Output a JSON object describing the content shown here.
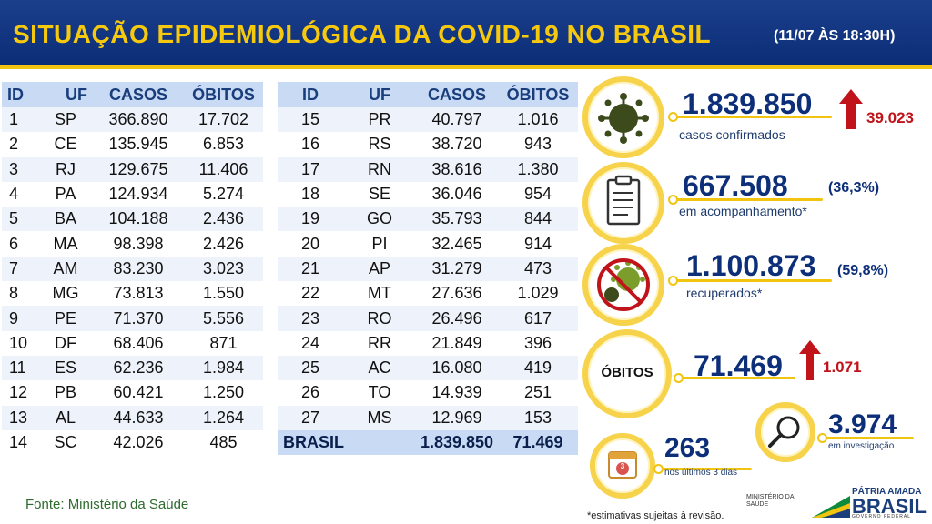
{
  "header": {
    "title": "SITUAÇÃO EPIDEMIOLÓGICA DA COVID-19 NO BRASIL",
    "timestamp": "(11/07 ÀS 18:30H)"
  },
  "table_headers": {
    "id": "ID",
    "uf": "UF",
    "cases": "CASOS",
    "deaths": "ÓBITOS"
  },
  "left_rows": [
    [
      "1",
      "SP",
      "366.890",
      "17.702"
    ],
    [
      "2",
      "CE",
      "135.945",
      "6.853"
    ],
    [
      "3",
      "RJ",
      "129.675",
      "11.406"
    ],
    [
      "4",
      "PA",
      "124.934",
      "5.274"
    ],
    [
      "5",
      "BA",
      "104.188",
      "2.436"
    ],
    [
      "6",
      "MA",
      "98.398",
      "2.426"
    ],
    [
      "7",
      "AM",
      "83.230",
      "3.023"
    ],
    [
      "8",
      "MG",
      "73.813",
      "1.550"
    ],
    [
      "9",
      "PE",
      "71.370",
      "5.556"
    ],
    [
      "10",
      "DF",
      "68.406",
      "871"
    ],
    [
      "11",
      "ES",
      "62.236",
      "1.984"
    ],
    [
      "12",
      "PB",
      "60.421",
      "1.250"
    ],
    [
      "13",
      "AL",
      "44.633",
      "1.264"
    ],
    [
      "14",
      "SC",
      "42.026",
      "485"
    ]
  ],
  "right_rows": [
    [
      "15",
      "PR",
      "40.797",
      "1.016"
    ],
    [
      "16",
      "RS",
      "38.720",
      "943"
    ],
    [
      "17",
      "RN",
      "38.616",
      "1.380"
    ],
    [
      "18",
      "SE",
      "36.046",
      "954"
    ],
    [
      "19",
      "GO",
      "35.793",
      "844"
    ],
    [
      "20",
      "PI",
      "32.465",
      "914"
    ],
    [
      "21",
      "AP",
      "31.279",
      "473"
    ],
    [
      "22",
      "MT",
      "27.636",
      "1.029"
    ],
    [
      "23",
      "RO",
      "26.496",
      "617"
    ],
    [
      "24",
      "RR",
      "21.849",
      "396"
    ],
    [
      "25",
      "AC",
      "16.080",
      "419"
    ],
    [
      "26",
      "TO",
      "14.939",
      "251"
    ],
    [
      "27",
      "MS",
      "12.969",
      "153"
    ]
  ],
  "total": {
    "label": "BRASIL",
    "cases": "1.839.850",
    "deaths": "71.469"
  },
  "source": "Fonte: Ministério da Saúde",
  "stats": {
    "confirmed": {
      "value": "1.839.850",
      "delta": "39.023",
      "label": "casos confirmados",
      "icon": "virus-icon"
    },
    "monitoring": {
      "value": "667.508",
      "pct": "(36,3%)",
      "label": "em acompanhamento*",
      "icon": "clipboard-icon"
    },
    "recovered": {
      "value": "1.100.873",
      "pct": "(59,8%)",
      "label": "recuperados*",
      "icon": "no-virus-icon"
    },
    "deaths": {
      "badge": "ÓBITOS",
      "value": "71.469",
      "delta": "1.071"
    },
    "investigation": {
      "value": "3.974",
      "label": "em investigação",
      "icon": "magnifier-icon"
    },
    "last3days": {
      "value": "263",
      "label": "nos últimos 3 dias",
      "calendar_number": "3",
      "icon": "calendar-icon"
    }
  },
  "footnote": "*estimativas sujeitas à revisão.",
  "ministry": "MINISTÉRIO DA SAÚDE",
  "brand": {
    "top": "PÁTRIA AMADA",
    "main": "BRASIL",
    "sub": "GOVERNO FEDERAL"
  },
  "colors": {
    "header_bg": "#0b2d77",
    "accent_yellow": "#f6c90e",
    "delta_red": "#c0131a",
    "table_header": "#c9dbf4"
  }
}
